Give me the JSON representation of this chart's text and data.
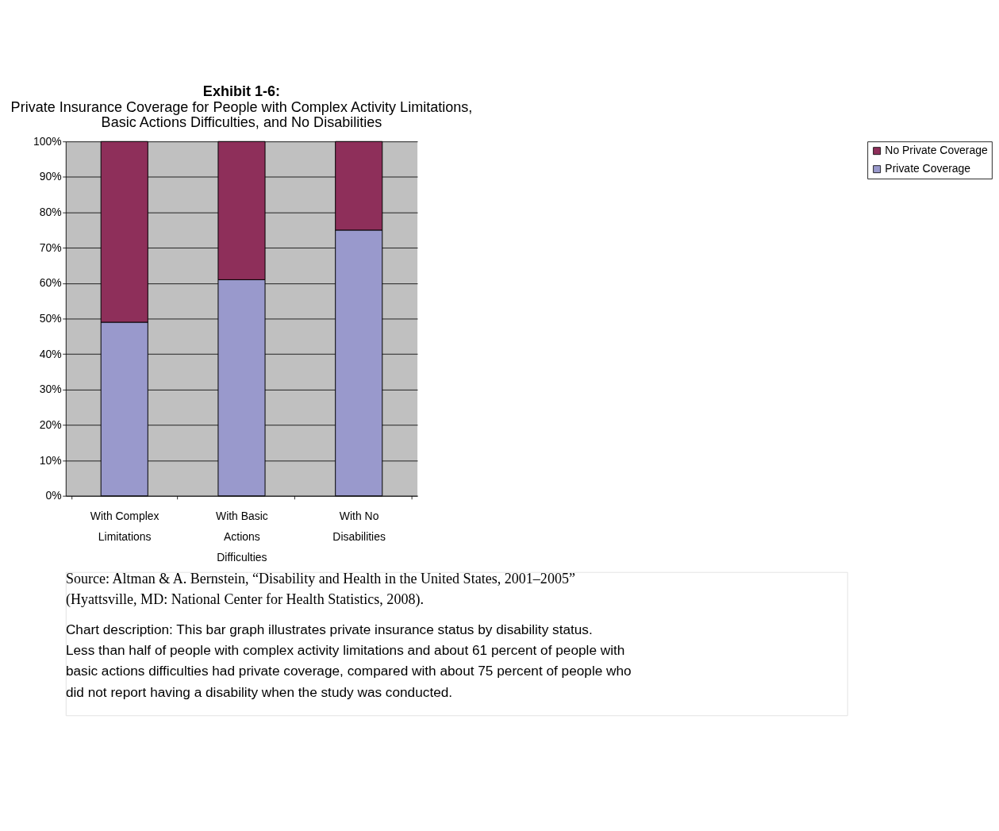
{
  "chart_data": {
    "type": "bar",
    "stacked": true,
    "title": "Exhibit 1-6:",
    "subtitle": "Private Insurance Coverage for People with Complex Activity Limitations, Basic Actions Difficulties, and No Disabilities",
    "categories": [
      "With Complex Limitations",
      "With Basic Actions Difficulties",
      "With No Disabilities"
    ],
    "series": [
      {
        "name": "Private Coverage",
        "color": "#9999cc",
        "values": [
          49,
          61,
          75
        ]
      },
      {
        "name": "No Private Coverage",
        "color": "#8e2f5a",
        "values": [
          51,
          39,
          25
        ]
      }
    ],
    "ylim": [
      0,
      100
    ],
    "yticks": [
      {
        "value": 0,
        "label": "0%"
      },
      {
        "value": 10,
        "label": "10%"
      },
      {
        "value": 20,
        "label": "20%"
      },
      {
        "value": 30,
        "label": "30%"
      },
      {
        "value": 40,
        "label": "40%"
      },
      {
        "value": 50,
        "label": "50%"
      },
      {
        "value": 60,
        "label": "60%"
      },
      {
        "value": 70,
        "label": "70%"
      },
      {
        "value": 80,
        "label": "80%"
      },
      {
        "value": 90,
        "label": "90%"
      },
      {
        "value": 100,
        "label": "100%"
      }
    ],
    "grid": "y",
    "legend": "right",
    "annotations": [
      "Source: Altman & A. Bernstein, “Disability and Health in the United States, 2001–2005” (Hyattsville, MD: National Center for Health Statistics, 2008).",
      "Chart description: This bar graph illustrates private insurance status by disability status. Less than half of people with complex activity limitations and about 61 percent of people with basic actions difficulties had private coverage, compared with about 75 percent of people who did not report having a disability when the study was conducted."
    ]
  }
}
